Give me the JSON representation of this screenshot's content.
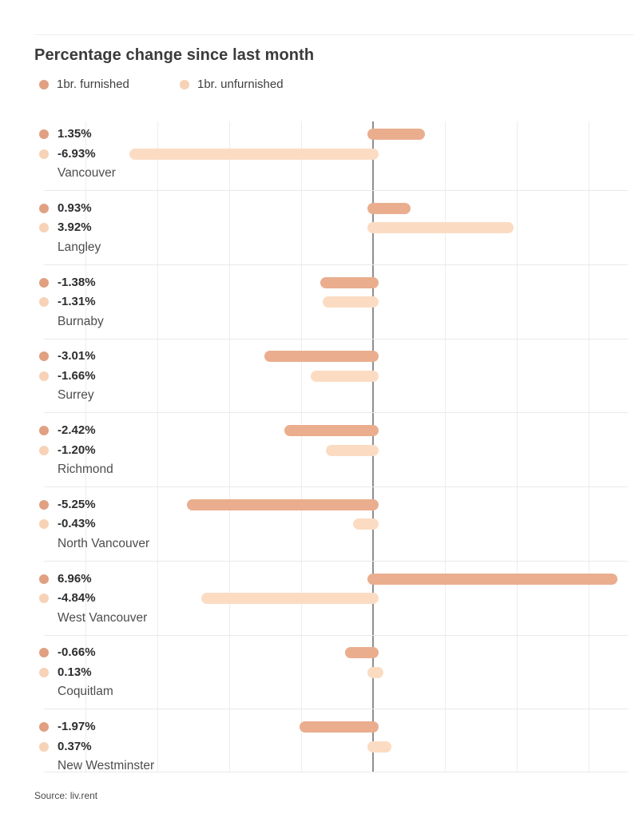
{
  "page": {
    "title": "Percentage change since last month",
    "source": "Source: liv.rent"
  },
  "legend": {
    "items": [
      {
        "label": "1br. furnished"
      },
      {
        "label": "1br. unfurnished"
      }
    ]
  },
  "colors": {
    "furnished_bar": "#eaae8e",
    "furnished_dot": "#e0a081",
    "unfurnished_bar": "#fbdcc3",
    "unfurnished_dot": "#f7d2b6",
    "zero_axis": "#8f8f8f",
    "gridline": "#f2ece7",
    "separator": "#e9e9e9",
    "title_text": "#3b3b3b",
    "value_text": "#2d2d2d",
    "city_text": "#4d4d4d"
  },
  "chart_data": {
    "type": "bar",
    "orientation": "horizontal",
    "title": "Percentage change since last month",
    "xlabel": "",
    "ylabel": "",
    "value_suffix": "%",
    "xlim": [
      -8.5,
      7.5
    ],
    "gridlines": true,
    "zero_line": true,
    "legend_position": "top-left",
    "categories": [
      "Vancouver",
      "Langley",
      "Burnaby",
      "Surrey",
      "Richmond",
      "North Vancouver",
      "West Vancouver",
      "Coquitlam",
      "New Westminster"
    ],
    "series": [
      {
        "name": "1br. furnished",
        "values": [
          1.35,
          0.93,
          -1.38,
          -3.01,
          -2.42,
          -5.25,
          6.96,
          -0.66,
          -1.97
        ],
        "labels": [
          "1.35%",
          "0.93%",
          "-1.38%",
          "-3.01%",
          "-2.42%",
          "-5.25%",
          "6.96%",
          "-0.66%",
          "-1.97%"
        ]
      },
      {
        "name": "1br. unfurnished",
        "values": [
          -6.93,
          3.92,
          -1.31,
          -1.66,
          -1.2,
          -0.43,
          -4.84,
          0.13,
          0.37
        ],
        "labels": [
          "-6.93%",
          "3.92%",
          "-1.31%",
          "-1.66%",
          "-1.20%",
          "-0.43%",
          "-4.84%",
          "0.13%",
          "0.37%"
        ]
      }
    ]
  }
}
